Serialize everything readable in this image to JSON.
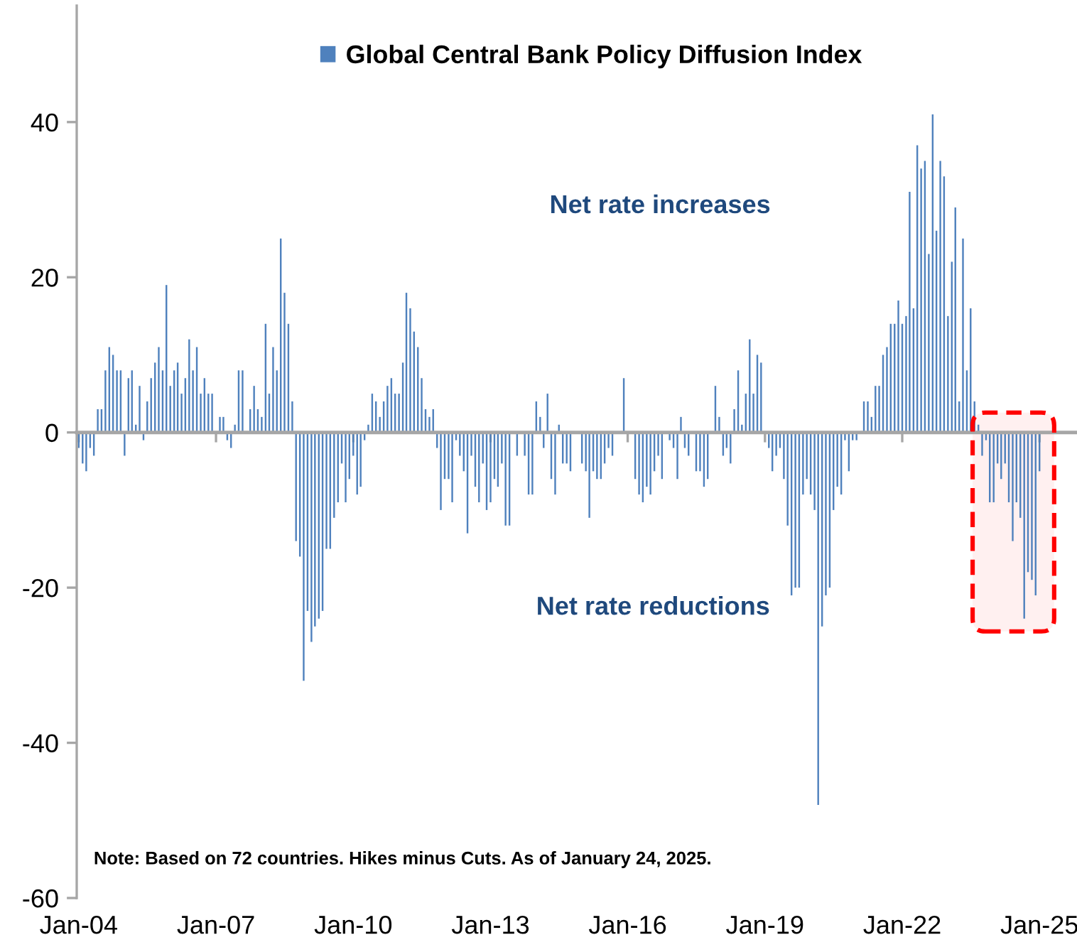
{
  "chart_data": {
    "type": "bar",
    "x": [
      "2004-01",
      "2004-02",
      "2004-03",
      "2004-04",
      "2004-05",
      "2004-06",
      "2004-07",
      "2004-08",
      "2004-09",
      "2004-10",
      "2004-11",
      "2004-12",
      "2005-01",
      "2005-02",
      "2005-03",
      "2005-04",
      "2005-05",
      "2005-06",
      "2005-07",
      "2005-08",
      "2005-09",
      "2005-10",
      "2005-11",
      "2005-12",
      "2006-01",
      "2006-02",
      "2006-03",
      "2006-04",
      "2006-05",
      "2006-06",
      "2006-07",
      "2006-08",
      "2006-09",
      "2006-10",
      "2006-11",
      "2006-12",
      "2007-01",
      "2007-02",
      "2007-03",
      "2007-04",
      "2007-05",
      "2007-06",
      "2007-07",
      "2007-08",
      "2007-09",
      "2007-10",
      "2007-11",
      "2007-12",
      "2008-01",
      "2008-02",
      "2008-03",
      "2008-04",
      "2008-05",
      "2008-06",
      "2008-07",
      "2008-08",
      "2008-09",
      "2008-10",
      "2008-11",
      "2008-12",
      "2009-01",
      "2009-02",
      "2009-03",
      "2009-04",
      "2009-05",
      "2009-06",
      "2009-07",
      "2009-08",
      "2009-09",
      "2009-10",
      "2009-11",
      "2009-12",
      "2010-01",
      "2010-02",
      "2010-03",
      "2010-04",
      "2010-05",
      "2010-06",
      "2010-07",
      "2010-08",
      "2010-09",
      "2010-10",
      "2010-11",
      "2010-12",
      "2011-01",
      "2011-02",
      "2011-03",
      "2011-04",
      "2011-05",
      "2011-06",
      "2011-07",
      "2011-08",
      "2011-09",
      "2011-10",
      "2011-11",
      "2011-12",
      "2012-01",
      "2012-02",
      "2012-03",
      "2012-04",
      "2012-05",
      "2012-06",
      "2012-07",
      "2012-08",
      "2012-09",
      "2012-10",
      "2012-11",
      "2012-12",
      "2013-01",
      "2013-02",
      "2013-03",
      "2013-04",
      "2013-05",
      "2013-06",
      "2013-07",
      "2013-08",
      "2013-09",
      "2013-10",
      "2013-11",
      "2013-12",
      "2014-01",
      "2014-02",
      "2014-03",
      "2014-04",
      "2014-05",
      "2014-06",
      "2014-07",
      "2014-08",
      "2014-09",
      "2014-10",
      "2014-11",
      "2014-12",
      "2015-01",
      "2015-02",
      "2015-03",
      "2015-04",
      "2015-05",
      "2015-06",
      "2015-07",
      "2015-08",
      "2015-09",
      "2015-10",
      "2015-11",
      "2015-12",
      "2016-01",
      "2016-02",
      "2016-03",
      "2016-04",
      "2016-05",
      "2016-06",
      "2016-07",
      "2016-08",
      "2016-09",
      "2016-10",
      "2016-11",
      "2016-12",
      "2017-01",
      "2017-02",
      "2017-03",
      "2017-04",
      "2017-05",
      "2017-06",
      "2017-07",
      "2017-08",
      "2017-09",
      "2017-10",
      "2017-11",
      "2017-12",
      "2018-01",
      "2018-02",
      "2018-03",
      "2018-04",
      "2018-05",
      "2018-06",
      "2018-07",
      "2018-08",
      "2018-09",
      "2018-10",
      "2018-11",
      "2018-12",
      "2019-01",
      "2019-02",
      "2019-03",
      "2019-04",
      "2019-05",
      "2019-06",
      "2019-07",
      "2019-08",
      "2019-09",
      "2019-10",
      "2019-11",
      "2019-12",
      "2020-01",
      "2020-02",
      "2020-03",
      "2020-04",
      "2020-05",
      "2020-06",
      "2020-07",
      "2020-08",
      "2020-09",
      "2020-10",
      "2020-11",
      "2020-12",
      "2021-01",
      "2021-02",
      "2021-03",
      "2021-04",
      "2021-05",
      "2021-06",
      "2021-07",
      "2021-08",
      "2021-09",
      "2021-10",
      "2021-11",
      "2021-12",
      "2022-01",
      "2022-02",
      "2022-03",
      "2022-04",
      "2022-05",
      "2022-06",
      "2022-07",
      "2022-08",
      "2022-09",
      "2022-10",
      "2022-11",
      "2022-12",
      "2023-01",
      "2023-02",
      "2023-03",
      "2023-04",
      "2023-05",
      "2023-06",
      "2023-07",
      "2023-08",
      "2023-09",
      "2023-10",
      "2023-11",
      "2023-12",
      "2024-01",
      "2024-02",
      "2024-03",
      "2024-04",
      "2024-05",
      "2024-06",
      "2024-07",
      "2024-08",
      "2024-09",
      "2024-10",
      "2024-11",
      "2024-12",
      "2025-01"
    ],
    "series": [
      {
        "name": "Global Central Bank Policy Diffusion Index",
        "color": "#4f81bd",
        "values": [
          -2,
          -4,
          -5,
          -2,
          -3,
          3,
          3,
          8,
          11,
          10,
          8,
          8,
          -3,
          7,
          8,
          1,
          6,
          -1,
          4,
          7,
          9,
          11,
          8,
          19,
          6,
          8,
          9,
          5,
          7,
          12,
          8,
          11,
          5,
          7,
          5,
          5,
          0,
          2,
          2,
          -1,
          -2,
          1,
          8,
          8,
          0,
          3,
          6,
          3,
          2,
          14,
          5,
          11,
          8,
          25,
          18,
          14,
          4,
          -14,
          -16,
          -32,
          -23,
          -27,
          -25,
          -24,
          -23,
          -15,
          -15,
          -11,
          -9,
          -4,
          -9,
          -6,
          -3,
          -8,
          -7,
          -1,
          1,
          5,
          4,
          2,
          4,
          6,
          7,
          5,
          5,
          9,
          18,
          16,
          13,
          11,
          7,
          3,
          2,
          3,
          -2,
          -10,
          -6,
          -6,
          -9,
          -1,
          -3,
          -5,
          -13,
          -3,
          -7,
          -9,
          -4,
          -10,
          -9,
          -6,
          -7,
          -4,
          -12,
          -12,
          0,
          -3,
          0,
          -3,
          -8,
          -8,
          4,
          2,
          -2,
          5,
          -6,
          -8,
          1,
          -4,
          -4,
          -5,
          0,
          0,
          -4,
          -5,
          -11,
          -5,
          -6,
          -6,
          -4,
          -2,
          -3,
          0,
          0,
          7,
          0,
          0,
          -6,
          -8,
          -9,
          -7,
          -8,
          -5,
          -3,
          -6,
          0,
          -1,
          -2,
          -6,
          2,
          -2,
          -3,
          0,
          -5,
          -5,
          -7,
          -6,
          0,
          6,
          2,
          -3,
          -2,
          -4,
          3,
          8,
          1,
          5,
          12,
          5,
          10,
          9,
          0,
          -2,
          -5,
          -3,
          -2,
          -6,
          -12,
          -21,
          -20,
          -20,
          -8,
          -6,
          -8,
          -10,
          -48,
          -25,
          -21,
          -20,
          -10,
          -7,
          -8,
          -1,
          -5,
          -1,
          -1,
          0,
          4,
          4,
          2,
          6,
          6,
          10,
          11,
          14,
          14,
          17,
          14,
          15,
          31,
          16,
          37,
          34,
          35,
          23,
          41,
          26,
          35,
          33,
          15,
          22,
          29,
          4,
          25,
          8,
          16,
          4,
          1,
          -3,
          -1,
          -9,
          -9,
          -4,
          -6,
          -4,
          -9,
          -14,
          -9,
          -11,
          -24,
          -18,
          -19,
          -21,
          -5
        ]
      }
    ],
    "xlim": [
      "2003-12-16",
      "2025-10-16"
    ],
    "xticks": [
      {
        "value": "2004-01",
        "label": "Jan-04"
      },
      {
        "value": "2007-01",
        "label": "Jan-07"
      },
      {
        "value": "2010-01",
        "label": "Jan-10"
      },
      {
        "value": "2013-01",
        "label": "Jan-13"
      },
      {
        "value": "2016-01",
        "label": "Jan-16"
      },
      {
        "value": "2019-01",
        "label": "Jan-19"
      },
      {
        "value": "2022-01",
        "label": "Jan-22"
      },
      {
        "value": "2025-01",
        "label": "Jan-25"
      }
    ],
    "ylim": [
      -60,
      55
    ],
    "yticks": [
      -60,
      -40,
      -20,
      0,
      20,
      40
    ],
    "legend": "top",
    "annotations": [
      "Net rate increases",
      "Net rate reductions",
      "Note: Based on 72 countries. Hikes minus Cuts. As of January 24, 2025."
    ],
    "bands": [
      {
        "axis": "x",
        "from": "2023-07-17",
        "to": "2025-04-28",
        "color": "#ff0000"
      }
    ]
  }
}
